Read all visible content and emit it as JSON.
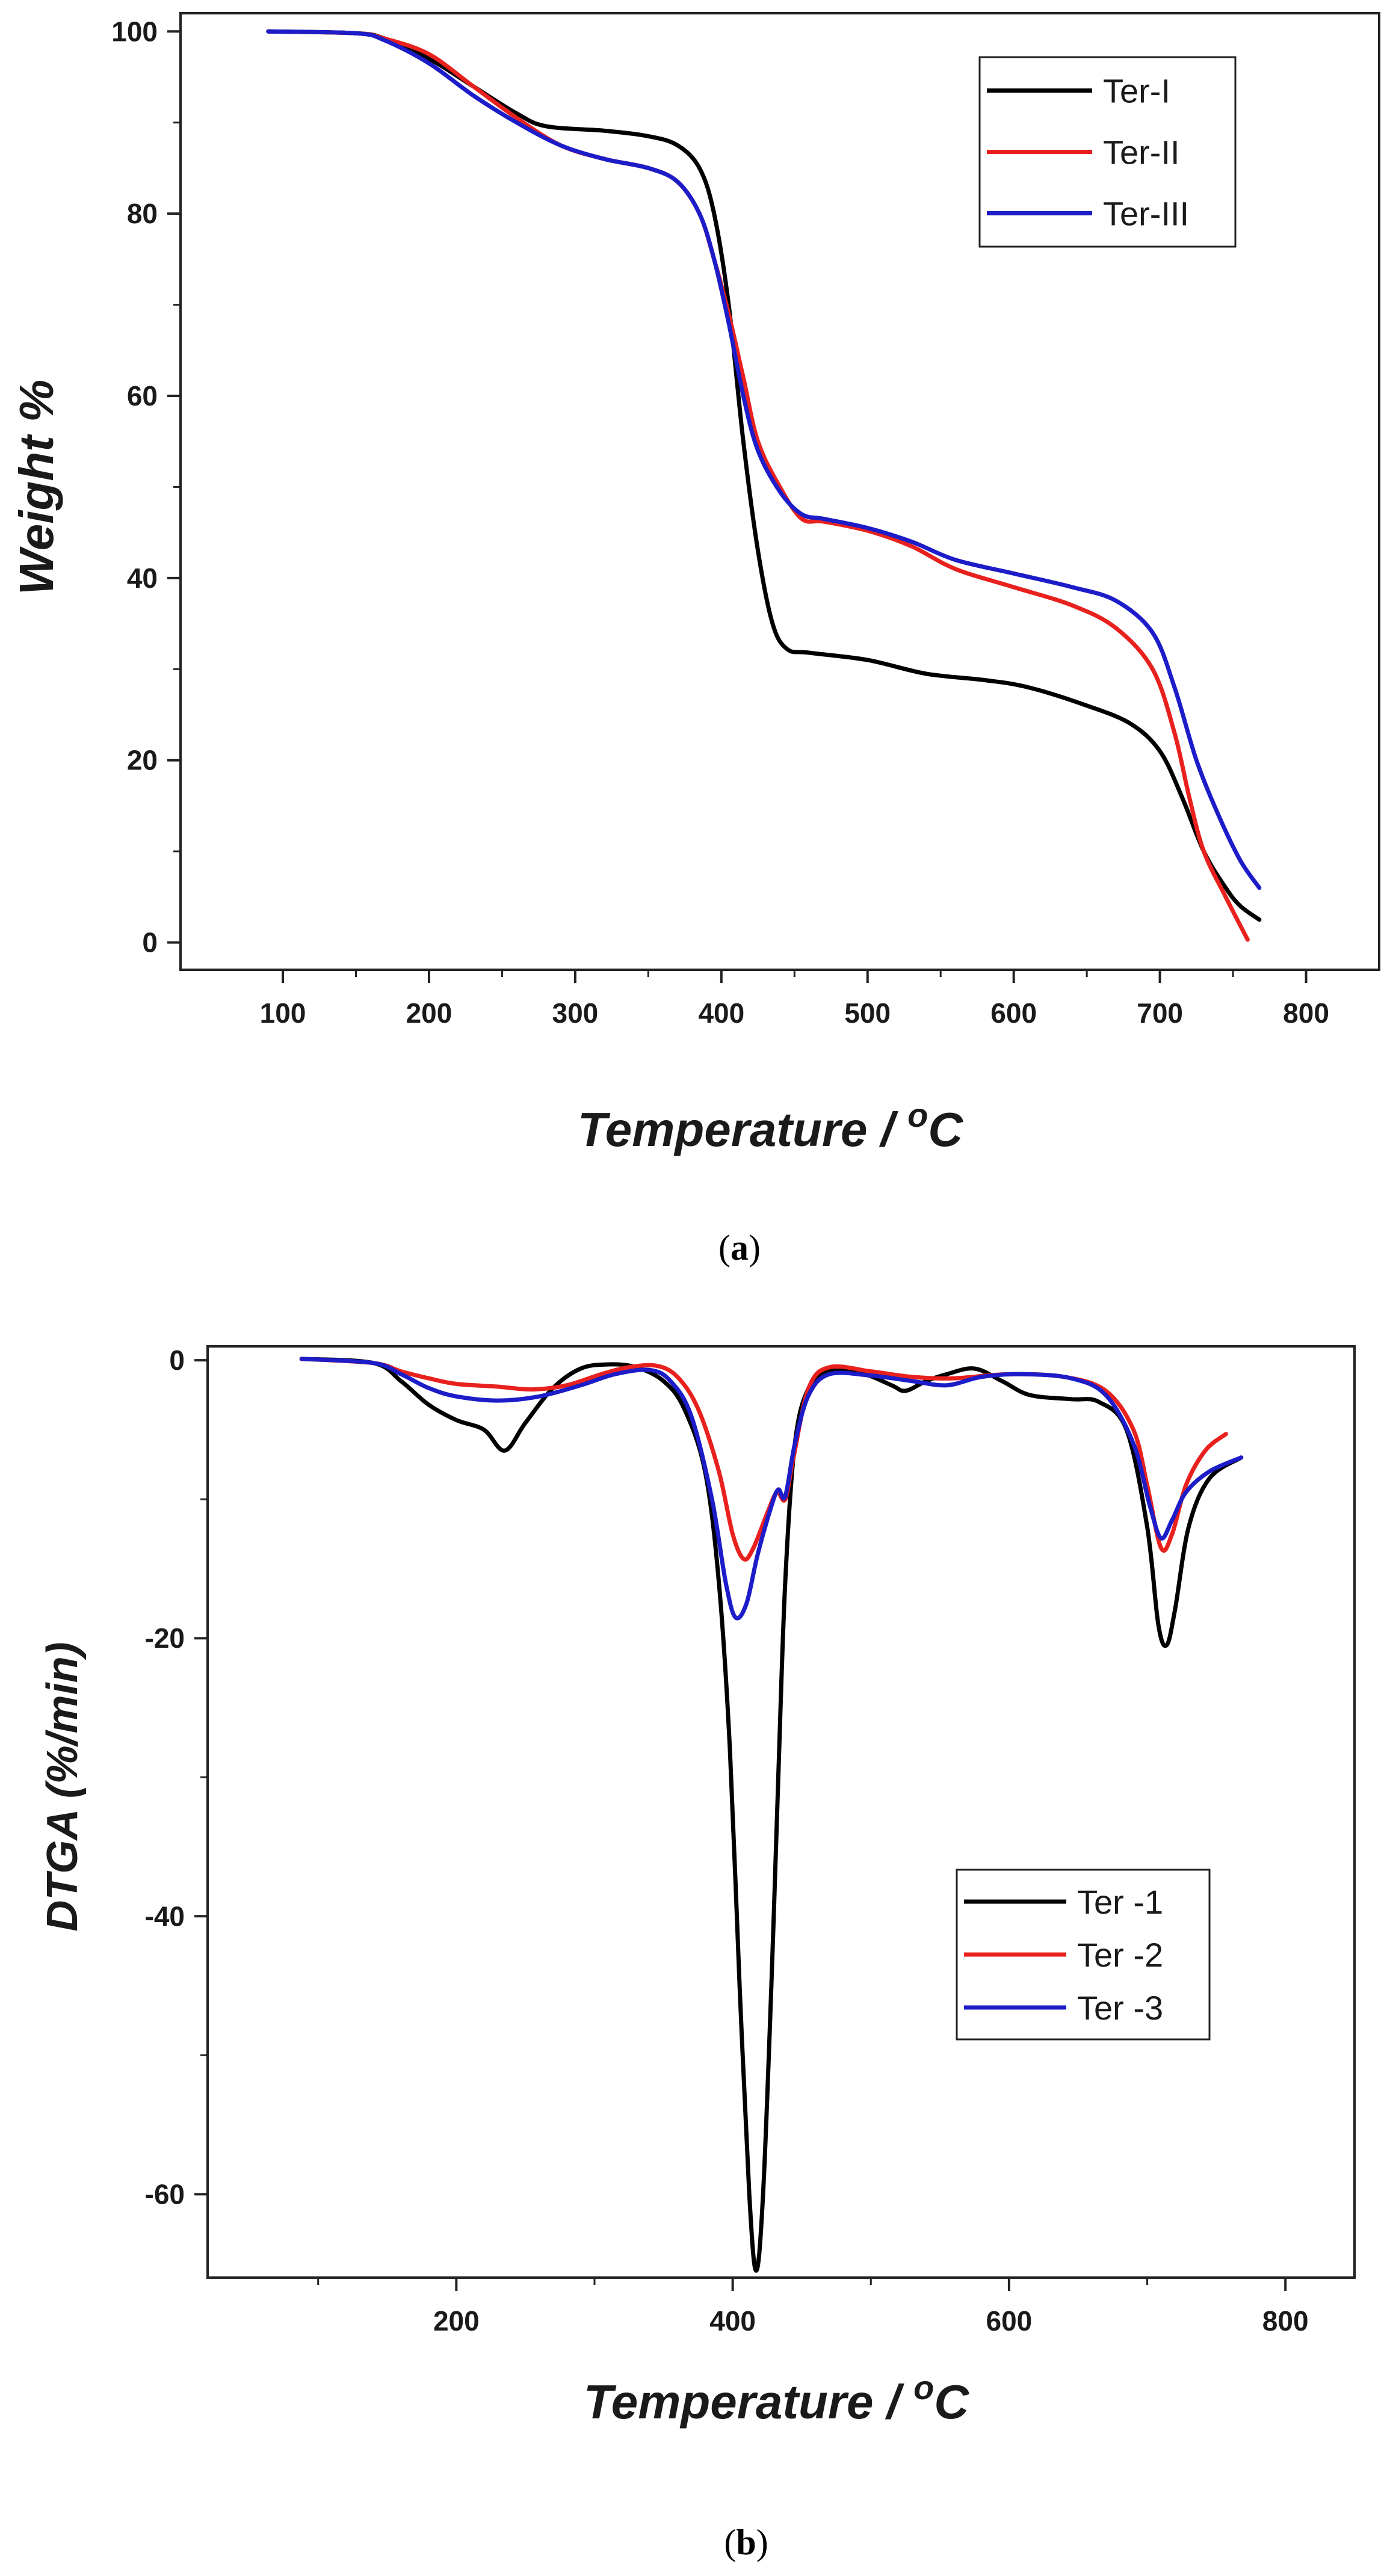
{
  "charts": [
    {
      "caption_letter": "a",
      "xlabel": "Temperature / ",
      "xlabel_sup": "o",
      "xlabel_unit": "C",
      "ylabel": "Weight %"
    },
    {
      "caption_letter": "b",
      "xlabel": "Temperature / ",
      "xlabel_sup": "o",
      "xlabel_unit": "C",
      "ylabel": "DTGA (%/min)"
    }
  ],
  "chart_data": [
    {
      "type": "line",
      "title": "",
      "xlabel": "Temperature / oC",
      "ylabel": "Weight %",
      "xlim": [
        30,
        850
      ],
      "ylim": [
        -3,
        102
      ],
      "xticks": [
        100,
        200,
        300,
        400,
        500,
        600,
        700,
        800
      ],
      "yticks": [
        0,
        20,
        40,
        60,
        80,
        100
      ],
      "legend_position": "top-right",
      "series": [
        {
          "name": "Ter-I",
          "color": "#000000",
          "points": [
            [
              90,
              100
            ],
            [
              150,
              99.8
            ],
            [
              170,
              99.2
            ],
            [
              200,
              97
            ],
            [
              230,
              94
            ],
            [
              260,
              91
            ],
            [
              280,
              89.6
            ],
            [
              320,
              89.1
            ],
            [
              350,
              88.5
            ],
            [
              370,
              87.5
            ],
            [
              385,
              85
            ],
            [
              395,
              80
            ],
            [
              405,
              70
            ],
            [
              415,
              55
            ],
            [
              425,
              43
            ],
            [
              435,
              35
            ],
            [
              445,
              32.2
            ],
            [
              460,
              31.8
            ],
            [
              500,
              31
            ],
            [
              540,
              29.5
            ],
            [
              580,
              28.8
            ],
            [
              610,
              28
            ],
            [
              650,
              26
            ],
            [
              680,
              24
            ],
            [
              700,
              21
            ],
            [
              715,
              16
            ],
            [
              730,
              10
            ],
            [
              745,
              6
            ],
            [
              755,
              4
            ],
            [
              768,
              2.5
            ]
          ]
        },
        {
          "name": "Ter-II",
          "color": "#e8211e",
          "points": [
            [
              90,
              100
            ],
            [
              150,
              99.8
            ],
            [
              170,
              99.2
            ],
            [
              200,
              97.5
            ],
            [
              230,
              94
            ],
            [
              260,
              90.5
            ],
            [
              290,
              87.5
            ],
            [
              320,
              86
            ],
            [
              350,
              85
            ],
            [
              370,
              83.5
            ],
            [
              385,
              80
            ],
            [
              395,
              75
            ],
            [
              405,
              69
            ],
            [
              415,
              62
            ],
            [
              425,
              55
            ],
            [
              440,
              50
            ],
            [
              455,
              46.5
            ],
            [
              470,
              46.2
            ],
            [
              500,
              45.2
            ],
            [
              530,
              43.5
            ],
            [
              560,
              41
            ],
            [
              600,
              39
            ],
            [
              640,
              37
            ],
            [
              670,
              34.5
            ],
            [
              695,
              30
            ],
            [
              710,
              23
            ],
            [
              720,
              16
            ],
            [
              730,
              10
            ],
            [
              745,
              5
            ],
            [
              760,
              0.3
            ]
          ]
        },
        {
          "name": "Ter-III",
          "color": "#1c1cc8",
          "points": [
            [
              90,
              100
            ],
            [
              150,
              99.8
            ],
            [
              170,
              99
            ],
            [
              200,
              96.5
            ],
            [
              230,
              93
            ],
            [
              260,
              90
            ],
            [
              290,
              87.5
            ],
            [
              320,
              86
            ],
            [
              350,
              85
            ],
            [
              370,
              83.5
            ],
            [
              385,
              80
            ],
            [
              395,
              75
            ],
            [
              405,
              68
            ],
            [
              415,
              60
            ],
            [
              425,
              54
            ],
            [
              440,
              49.5
            ],
            [
              455,
              47
            ],
            [
              470,
              46.5
            ],
            [
              500,
              45.5
            ],
            [
              530,
              44
            ],
            [
              560,
              42
            ],
            [
              600,
              40.5
            ],
            [
              640,
              39
            ],
            [
              670,
              37.5
            ],
            [
              695,
              34
            ],
            [
              710,
              28
            ],
            [
              725,
              20
            ],
            [
              740,
              14
            ],
            [
              755,
              9
            ],
            [
              768,
              6
            ]
          ]
        }
      ]
    },
    {
      "type": "line",
      "title": "",
      "xlabel": "Temperature / oC",
      "ylabel": "DTGA (%/min)",
      "xlim": [
        20,
        850
      ],
      "ylim": [
        -66,
        1
      ],
      "xticks": [
        200,
        400,
        600,
        800
      ],
      "yticks": [
        0,
        -20,
        -40,
        -60
      ],
      "legend_position": "center-right",
      "series": [
        {
          "name": "Ter -1",
          "color": "#000000",
          "points": [
            [
              88,
              0.1
            ],
            [
              140,
              -0.2
            ],
            [
              160,
              -1.5
            ],
            [
              180,
              -3.2
            ],
            [
              200,
              -4.3
            ],
            [
              220,
              -5
            ],
            [
              235,
              -6.5
            ],
            [
              250,
              -4.5
            ],
            [
              270,
              -2
            ],
            [
              290,
              -0.6
            ],
            [
              310,
              -0.3
            ],
            [
              330,
              -0.5
            ],
            [
              350,
              -1.5
            ],
            [
              365,
              -3.5
            ],
            [
              380,
              -8
            ],
            [
              390,
              -16
            ],
            [
              398,
              -28
            ],
            [
              405,
              -45
            ],
            [
              412,
              -60
            ],
            [
              417,
              -65.5
            ],
            [
              422,
              -60
            ],
            [
              428,
              -45
            ],
            [
              433,
              -30
            ],
            [
              438,
              -16
            ],
            [
              445,
              -6
            ],
            [
              455,
              -2
            ],
            [
              470,
              -0.8
            ],
            [
              495,
              -1
            ],
            [
              515,
              -1.8
            ],
            [
              525,
              -2.2
            ],
            [
              540,
              -1.5
            ],
            [
              555,
              -1
            ],
            [
              575,
              -0.6
            ],
            [
              595,
              -1.5
            ],
            [
              615,
              -2.5
            ],
            [
              645,
              -2.8
            ],
            [
              665,
              -3
            ],
            [
              685,
              -5
            ],
            [
              700,
              -12
            ],
            [
              708,
              -19
            ],
            [
              714,
              -20.5
            ],
            [
              720,
              -18
            ],
            [
              730,
              -12
            ],
            [
              745,
              -8.5
            ],
            [
              768,
              -7
            ]
          ]
        },
        {
          "name": "Ter -2",
          "color": "#e8211e",
          "points": [
            [
              88,
              0.1
            ],
            [
              140,
              -0.2
            ],
            [
              160,
              -0.8
            ],
            [
              180,
              -1.3
            ],
            [
              200,
              -1.7
            ],
            [
              230,
              -1.9
            ],
            [
              255,
              -2.1
            ],
            [
              280,
              -1.8
            ],
            [
              305,
              -1
            ],
            [
              325,
              -0.5
            ],
            [
              345,
              -0.4
            ],
            [
              360,
              -1.2
            ],
            [
              375,
              -3.5
            ],
            [
              390,
              -8
            ],
            [
              400,
              -12.5
            ],
            [
              408,
              -14.3
            ],
            [
              415,
              -13.5
            ],
            [
              425,
              -11
            ],
            [
              432,
              -9.5
            ],
            [
              438,
              -10
            ],
            [
              444,
              -7
            ],
            [
              455,
              -2
            ],
            [
              470,
              -0.5
            ],
            [
              500,
              -0.8
            ],
            [
              530,
              -1.2
            ],
            [
              560,
              -1.3
            ],
            [
              600,
              -1
            ],
            [
              640,
              -1.2
            ],
            [
              670,
              -2.2
            ],
            [
              690,
              -5
            ],
            [
              700,
              -9
            ],
            [
              710,
              -13.5
            ],
            [
              718,
              -12.5
            ],
            [
              728,
              -9
            ],
            [
              742,
              -6.5
            ],
            [
              757,
              -5.3
            ]
          ]
        },
        {
          "name": "Ter -3",
          "color": "#1c1cc8",
          "points": [
            [
              88,
              0.1
            ],
            [
              140,
              -0.2
            ],
            [
              160,
              -1
            ],
            [
              180,
              -2
            ],
            [
              200,
              -2.6
            ],
            [
              230,
              -2.9
            ],
            [
              260,
              -2.6
            ],
            [
              290,
              -1.8
            ],
            [
              315,
              -1
            ],
            [
              340,
              -0.7
            ],
            [
              355,
              -1.5
            ],
            [
              370,
              -4
            ],
            [
              385,
              -10
            ],
            [
              395,
              -16
            ],
            [
              402,
              -18.5
            ],
            [
              410,
              -17.5
            ],
            [
              418,
              -14
            ],
            [
              428,
              -10.5
            ],
            [
              433,
              -9.3
            ],
            [
              438,
              -9.8
            ],
            [
              445,
              -6
            ],
            [
              455,
              -2.5
            ],
            [
              470,
              -1
            ],
            [
              500,
              -1.1
            ],
            [
              530,
              -1.5
            ],
            [
              555,
              -1.8
            ],
            [
              580,
              -1.2
            ],
            [
              610,
              -1
            ],
            [
              645,
              -1.3
            ],
            [
              670,
              -2.5
            ],
            [
              690,
              -6
            ],
            [
              702,
              -10.5
            ],
            [
              710,
              -12.8
            ],
            [
              718,
              -11.5
            ],
            [
              728,
              -9.5
            ],
            [
              745,
              -8
            ],
            [
              768,
              -7
            ]
          ]
        }
      ]
    }
  ]
}
